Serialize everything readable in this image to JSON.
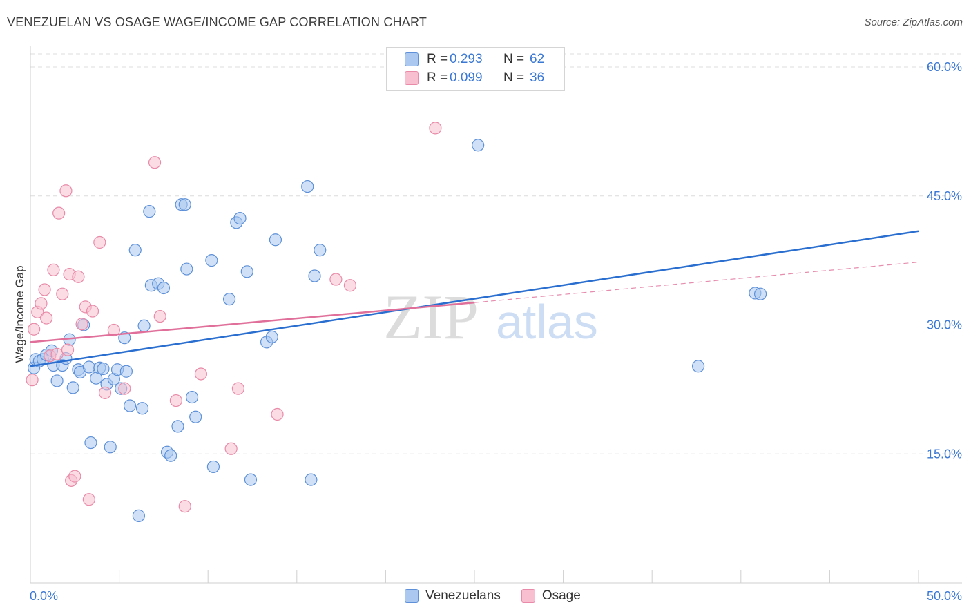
{
  "title": "VENEZUELAN VS OSAGE WAGE/INCOME GAP CORRELATION CHART",
  "source": "Source: ZipAtlas.com",
  "watermark": {
    "zip": "ZIP",
    "atlas": "atlas"
  },
  "legend": {
    "rows": [
      {
        "r_label": "R =",
        "r_value": "0.293",
        "n_label": "N =",
        "n_value": "62"
      },
      {
        "r_label": "R =",
        "r_value": "0.099",
        "n_label": "N =",
        "n_value": "36"
      }
    ]
  },
  "bottom_legend": [
    "Venezuelans",
    "Osage"
  ],
  "colors": {
    "blue_fill": "#aac8f0",
    "blue_stroke": "#5d90d8",
    "blue_line": "#2a6fd0",
    "pink_fill": "#f8bfd0",
    "pink_stroke": "#e88aa8",
    "pink_line": "#e0709a",
    "grid": "#dcdcdc",
    "axis_text": "#3a78d4"
  },
  "chart_data": {
    "type": "scatter",
    "title": "VENEZUELAN VS OSAGE WAGE/INCOME GAP CORRELATION CHART",
    "xlabel": "",
    "ylabel": "Wage/Income Gap",
    "xlim": [
      0,
      50
    ],
    "ylim": [
      0,
      63
    ],
    "x_tick_labels": [
      "0.0%",
      "50.0%"
    ],
    "y_ticks": [
      15,
      30,
      45,
      60
    ],
    "y_tick_labels": [
      "15.0%",
      "30.0%",
      "45.0%",
      "60.0%"
    ],
    "grid": true,
    "series": [
      {
        "name": "Venezuelans",
        "points": [
          [
            0.2,
            25.0
          ],
          [
            0.3,
            26.0
          ],
          [
            0.5,
            25.8
          ],
          [
            0.7,
            26.0
          ],
          [
            0.9,
            26.5
          ],
          [
            1.2,
            27.0
          ],
          [
            1.3,
            25.3
          ],
          [
            1.5,
            23.5
          ],
          [
            1.8,
            25.3
          ],
          [
            2.0,
            26.1
          ],
          [
            2.2,
            28.3
          ],
          [
            2.4,
            22.7
          ],
          [
            2.7,
            24.8
          ],
          [
            2.8,
            24.5
          ],
          [
            3.0,
            30.0
          ],
          [
            3.3,
            25.1
          ],
          [
            3.4,
            16.3
          ],
          [
            3.7,
            23.8
          ],
          [
            3.9,
            25.0
          ],
          [
            4.1,
            24.9
          ],
          [
            4.3,
            23.1
          ],
          [
            4.5,
            15.8
          ],
          [
            4.7,
            23.7
          ],
          [
            4.9,
            24.8
          ],
          [
            5.1,
            22.6
          ],
          [
            5.3,
            28.5
          ],
          [
            5.4,
            24.6
          ],
          [
            5.6,
            20.6
          ],
          [
            5.9,
            38.7
          ],
          [
            6.1,
            7.8
          ],
          [
            6.3,
            20.3
          ],
          [
            6.4,
            29.9
          ],
          [
            6.7,
            43.2
          ],
          [
            6.8,
            34.6
          ],
          [
            7.2,
            34.8
          ],
          [
            7.5,
            34.3
          ],
          [
            7.7,
            15.2
          ],
          [
            7.9,
            14.8
          ],
          [
            8.3,
            18.2
          ],
          [
            8.5,
            44.0
          ],
          [
            8.7,
            44.0
          ],
          [
            8.8,
            36.5
          ],
          [
            9.1,
            21.6
          ],
          [
            9.3,
            19.3
          ],
          [
            10.3,
            13.5
          ],
          [
            10.2,
            37.5
          ],
          [
            11.2,
            33.0
          ],
          [
            11.6,
            41.9
          ],
          [
            11.8,
            42.4
          ],
          [
            12.2,
            36.2
          ],
          [
            12.4,
            12.0
          ],
          [
            13.3,
            28.0
          ],
          [
            13.6,
            28.6
          ],
          [
            13.8,
            39.9
          ],
          [
            15.6,
            46.1
          ],
          [
            15.8,
            12.0
          ],
          [
            16.0,
            35.7
          ],
          [
            16.3,
            38.7
          ],
          [
            25.2,
            50.9
          ],
          [
            37.6,
            25.2
          ],
          [
            40.8,
            33.7
          ],
          [
            41.1,
            33.6
          ]
        ]
      },
      {
        "name": "Osage",
        "points": [
          [
            0.1,
            23.6
          ],
          [
            0.2,
            29.5
          ],
          [
            0.4,
            31.5
          ],
          [
            0.6,
            32.5
          ],
          [
            0.8,
            34.1
          ],
          [
            0.9,
            30.8
          ],
          [
            1.1,
            26.4
          ],
          [
            1.3,
            36.4
          ],
          [
            1.5,
            26.6
          ],
          [
            1.6,
            43.0
          ],
          [
            1.8,
            33.6
          ],
          [
            2.0,
            45.6
          ],
          [
            2.1,
            27.1
          ],
          [
            2.2,
            35.9
          ],
          [
            2.3,
            11.9
          ],
          [
            2.5,
            12.4
          ],
          [
            2.7,
            35.6
          ],
          [
            2.9,
            30.1
          ],
          [
            3.1,
            32.1
          ],
          [
            3.3,
            9.7
          ],
          [
            3.5,
            31.6
          ],
          [
            3.9,
            39.6
          ],
          [
            4.2,
            22.1
          ],
          [
            4.7,
            29.4
          ],
          [
            5.3,
            22.6
          ],
          [
            7.0,
            48.9
          ],
          [
            7.3,
            31.0
          ],
          [
            8.2,
            21.2
          ],
          [
            8.7,
            8.9
          ],
          [
            9.6,
            24.3
          ],
          [
            11.3,
            15.6
          ],
          [
            11.7,
            22.6
          ],
          [
            13.9,
            19.6
          ],
          [
            17.2,
            35.3
          ],
          [
            18.0,
            34.6
          ],
          [
            22.8,
            52.9
          ]
        ]
      }
    ],
    "trendlines": [
      {
        "series": "Venezuelans",
        "x": [
          0,
          50
        ],
        "y": [
          25.2,
          40.9
        ],
        "style": "solid"
      },
      {
        "series": "Osage",
        "x": [
          0,
          25
        ],
        "y": [
          28.0,
          32.6
        ],
        "style": "solid"
      },
      {
        "series": "Osage",
        "x": [
          25,
          50
        ],
        "y": [
          32.6,
          37.3
        ],
        "style": "dashed"
      }
    ]
  }
}
